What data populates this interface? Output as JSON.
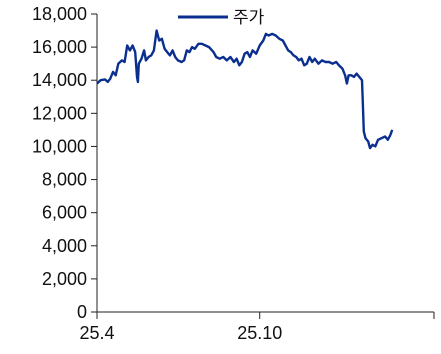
{
  "chart_data": {
    "type": "line",
    "title": "",
    "xlabel": "",
    "ylabel": "",
    "ylim": [
      0,
      18000
    ],
    "y_ticks": [
      0,
      2000,
      4000,
      6000,
      8000,
      10000,
      12000,
      14000,
      16000,
      18000
    ],
    "y_tick_labels": [
      "0",
      "2,000",
      "4,000",
      "6,000",
      "8,000",
      "10,000",
      "12,000",
      "14,000",
      "16,000",
      "18,000"
    ],
    "x_range": [
      "2025-04-01",
      "2026-04-15"
    ],
    "x_ticks": [
      {
        "date": "2025-04-01",
        "label": "25.4"
      },
      {
        "date": "2025-10-01",
        "label": "25.10"
      }
    ],
    "grid": false,
    "legend": {
      "placement": "top-center",
      "entries": [
        "주가"
      ]
    },
    "series": [
      {
        "name": "주가",
        "color": "#0a2f8f",
        "points": [
          [
            "2025-04-01",
            13800
          ],
          [
            "2025-04-05",
            14000
          ],
          [
            "2025-04-10",
            14050
          ],
          [
            "2025-04-13",
            13900
          ],
          [
            "2025-04-16",
            14100
          ],
          [
            "2025-04-19",
            14500
          ],
          [
            "2025-04-22",
            14300
          ],
          [
            "2025-04-25",
            15000
          ],
          [
            "2025-04-29",
            15200
          ],
          [
            "2025-05-02",
            15100
          ],
          [
            "2025-05-05",
            16100
          ],
          [
            "2025-05-08",
            15800
          ],
          [
            "2025-05-11",
            16100
          ],
          [
            "2025-05-14",
            15700
          ],
          [
            "2025-05-16",
            14200
          ],
          [
            "2025-05-17",
            13900
          ],
          [
            "2025-05-18",
            15000
          ],
          [
            "2025-05-21",
            15300
          ],
          [
            "2025-05-24",
            15800
          ],
          [
            "2025-05-26",
            15200
          ],
          [
            "2025-05-29",
            15400
          ],
          [
            "2025-06-01",
            15500
          ],
          [
            "2025-06-04",
            15800
          ],
          [
            "2025-06-07",
            17000
          ],
          [
            "2025-06-10",
            16400
          ],
          [
            "2025-06-13",
            16500
          ],
          [
            "2025-06-16",
            15900
          ],
          [
            "2025-06-19",
            15700
          ],
          [
            "2025-06-22",
            15500
          ],
          [
            "2025-06-25",
            15800
          ],
          [
            "2025-06-28",
            15400
          ],
          [
            "2025-07-01",
            15200
          ],
          [
            "2025-07-05",
            15100
          ],
          [
            "2025-07-08",
            15200
          ],
          [
            "2025-07-11",
            15800
          ],
          [
            "2025-07-14",
            15700
          ],
          [
            "2025-07-17",
            16000
          ],
          [
            "2025-07-20",
            15900
          ],
          [
            "2025-07-24",
            16200
          ],
          [
            "2025-07-28",
            16200
          ],
          [
            "2025-08-01",
            16100
          ],
          [
            "2025-08-05",
            16000
          ],
          [
            "2025-08-10",
            15700
          ],
          [
            "2025-08-13",
            15400
          ],
          [
            "2025-08-17",
            15300
          ],
          [
            "2025-08-21",
            15400
          ],
          [
            "2025-08-25",
            15200
          ],
          [
            "2025-08-29",
            15400
          ],
          [
            "2025-09-02",
            15100
          ],
          [
            "2025-09-05",
            15300
          ],
          [
            "2025-09-08",
            14900
          ],
          [
            "2025-09-11",
            15100
          ],
          [
            "2025-09-14",
            15600
          ],
          [
            "2025-09-17",
            15700
          ],
          [
            "2025-09-20",
            15400
          ],
          [
            "2025-09-23",
            15800
          ],
          [
            "2025-09-27",
            15600
          ],
          [
            "2025-10-01",
            16100
          ],
          [
            "2025-10-05",
            16400
          ],
          [
            "2025-10-08",
            16800
          ],
          [
            "2025-10-11",
            16700
          ],
          [
            "2025-10-15",
            16800
          ],
          [
            "2025-10-19",
            16700
          ],
          [
            "2025-10-23",
            16500
          ],
          [
            "2025-10-27",
            16400
          ],
          [
            "2025-10-30",
            16100
          ],
          [
            "2025-11-02",
            15800
          ],
          [
            "2025-11-05",
            15700
          ],
          [
            "2025-11-08",
            15500
          ],
          [
            "2025-11-11",
            15400
          ],
          [
            "2025-11-14",
            15200
          ],
          [
            "2025-11-17",
            15300
          ],
          [
            "2025-11-20",
            14900
          ],
          [
            "2025-11-23",
            15000
          ],
          [
            "2025-11-26",
            15400
          ],
          [
            "2025-11-29",
            15100
          ],
          [
            "2025-12-02",
            15300
          ],
          [
            "2025-12-06",
            15000
          ],
          [
            "2025-12-10",
            15200
          ],
          [
            "2025-12-14",
            15100
          ],
          [
            "2025-12-18",
            15100
          ],
          [
            "2025-12-22",
            15000
          ],
          [
            "2025-12-26",
            15100
          ],
          [
            "2025-12-29",
            14900
          ],
          [
            "2026-01-02",
            14700
          ],
          [
            "2026-01-05",
            14300
          ],
          [
            "2026-01-07",
            13800
          ],
          [
            "2026-01-09",
            14300
          ],
          [
            "2026-01-12",
            14300
          ],
          [
            "2026-01-15",
            14200
          ],
          [
            "2026-01-18",
            14400
          ],
          [
            "2026-01-21",
            14200
          ],
          [
            "2026-01-24",
            14000
          ],
          [
            "2026-01-25",
            12500
          ],
          [
            "2026-01-26",
            10900
          ],
          [
            "2026-01-28",
            10500
          ],
          [
            "2026-01-31",
            10300
          ],
          [
            "2026-02-02",
            9900
          ],
          [
            "2026-02-05",
            10100
          ],
          [
            "2026-02-08",
            10000
          ],
          [
            "2026-02-11",
            10400
          ],
          [
            "2026-02-15",
            10500
          ],
          [
            "2026-02-19",
            10600
          ],
          [
            "2026-02-22",
            10400
          ],
          [
            "2026-02-25",
            10700
          ],
          [
            "2026-02-27",
            11000
          ]
        ]
      }
    ]
  }
}
